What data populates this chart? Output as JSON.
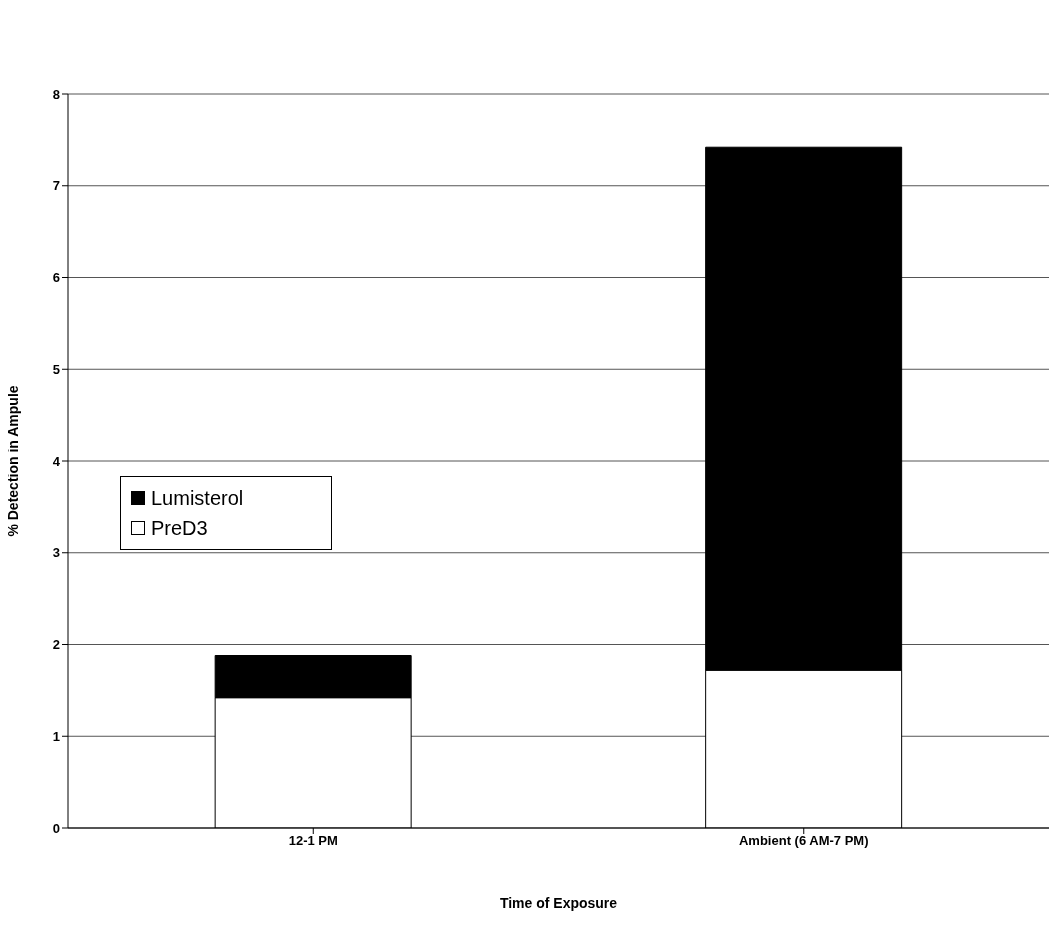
{
  "chart_data": {
    "type": "bar",
    "stacked": true,
    "xlabel": "Time of Exposure",
    "ylabel": "% Detection in Ampule",
    "categories": [
      "12-1 PM",
      "Ambient (6 AM-7 PM)"
    ],
    "series": [
      {
        "name": "PreD3",
        "color": "#ffffff",
        "values": [
          1.42,
          1.72
        ]
      },
      {
        "name": "Lumisterol",
        "color": "#000000",
        "values": [
          0.46,
          5.7
        ]
      }
    ],
    "ylim": [
      0,
      8
    ],
    "yticks": [
      0,
      1,
      2,
      3,
      4,
      5,
      6,
      7,
      8
    ],
    "grid": "y",
    "legend": "left"
  }
}
